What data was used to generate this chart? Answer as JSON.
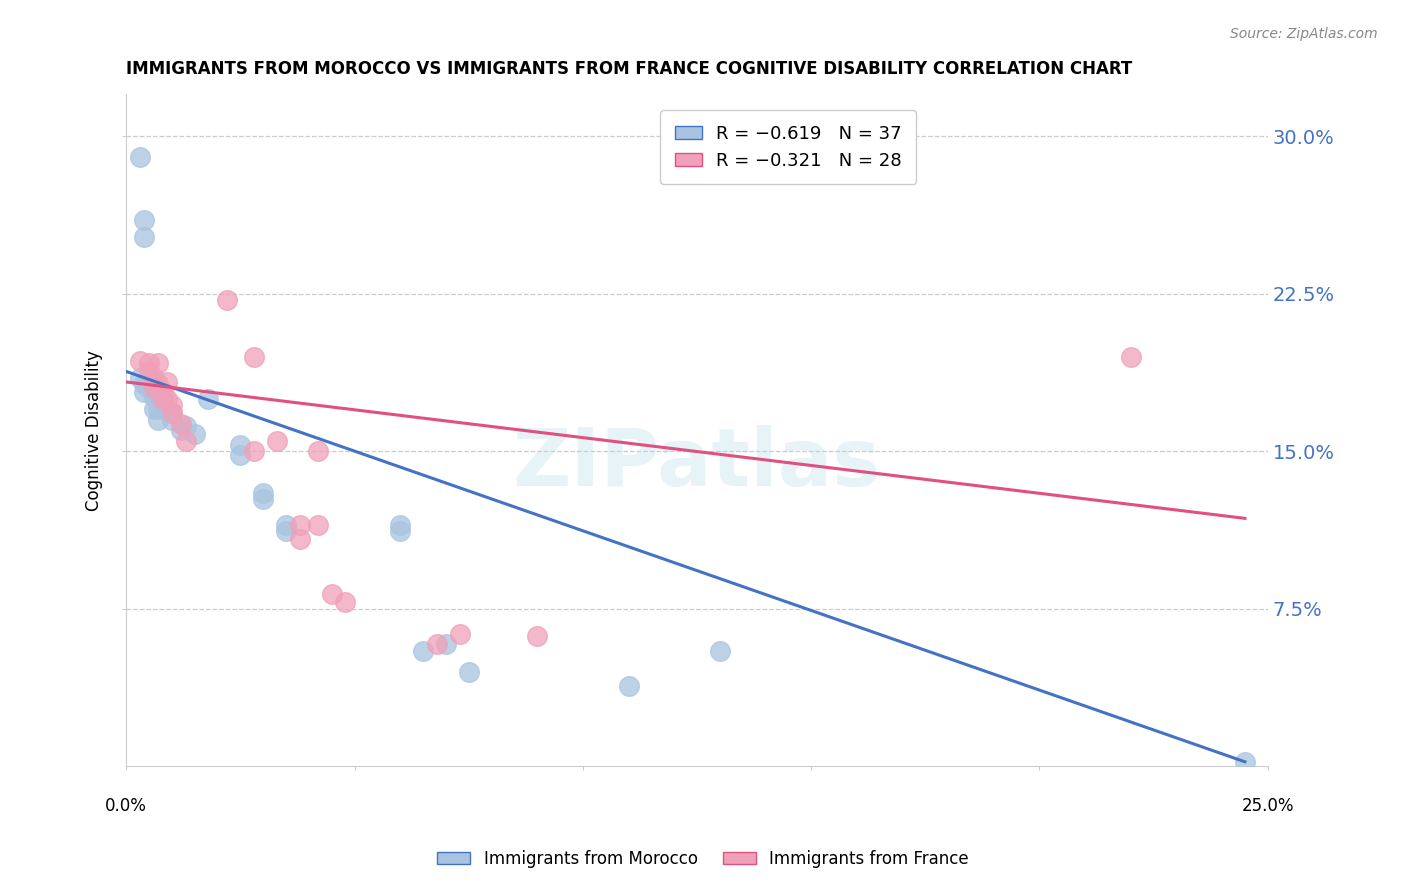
{
  "title": "IMMIGRANTS FROM MOROCCO VS IMMIGRANTS FROM FRANCE COGNITIVE DISABILITY CORRELATION CHART",
  "source": "Source: ZipAtlas.com",
  "ylabel": "Cognitive Disability",
  "yticks": [
    0.075,
    0.15,
    0.225,
    0.3
  ],
  "ytick_labels": [
    "7.5%",
    "15.0%",
    "22.5%",
    "30.0%"
  ],
  "xlim": [
    0.0,
    0.25
  ],
  "ylim": [
    0.0,
    0.32
  ],
  "watermark": "ZIPatlas",
  "morocco_color": "#a8c4e0",
  "france_color": "#f0a0b8",
  "line_morocco_color": "#4472c4",
  "line_france_color": "#e05080",
  "morocco_scatter": [
    [
      0.003,
      0.185
    ],
    [
      0.004,
      0.178
    ],
    [
      0.004,
      0.182
    ],
    [
      0.005,
      0.185
    ],
    [
      0.005,
      0.18
    ],
    [
      0.006,
      0.183
    ],
    [
      0.006,
      0.176
    ],
    [
      0.006,
      0.17
    ],
    [
      0.007,
      0.177
    ],
    [
      0.007,
      0.17
    ],
    [
      0.007,
      0.165
    ],
    [
      0.008,
      0.178
    ],
    [
      0.008,
      0.173
    ],
    [
      0.009,
      0.17
    ],
    [
      0.01,
      0.168
    ],
    [
      0.01,
      0.165
    ],
    [
      0.012,
      0.16
    ],
    [
      0.013,
      0.162
    ],
    [
      0.015,
      0.158
    ],
    [
      0.018,
      0.175
    ],
    [
      0.003,
      0.29
    ],
    [
      0.004,
      0.26
    ],
    [
      0.004,
      0.252
    ],
    [
      0.025,
      0.153
    ],
    [
      0.025,
      0.148
    ],
    [
      0.03,
      0.13
    ],
    [
      0.03,
      0.127
    ],
    [
      0.035,
      0.115
    ],
    [
      0.035,
      0.112
    ],
    [
      0.06,
      0.115
    ],
    [
      0.06,
      0.112
    ],
    [
      0.065,
      0.055
    ],
    [
      0.07,
      0.058
    ],
    [
      0.075,
      0.045
    ],
    [
      0.11,
      0.038
    ],
    [
      0.13,
      0.055
    ],
    [
      0.245,
      0.002
    ]
  ],
  "france_scatter": [
    [
      0.003,
      0.193
    ],
    [
      0.005,
      0.192
    ],
    [
      0.005,
      0.188
    ],
    [
      0.006,
      0.185
    ],
    [
      0.006,
      0.18
    ],
    [
      0.007,
      0.192
    ],
    [
      0.007,
      0.182
    ],
    [
      0.008,
      0.175
    ],
    [
      0.009,
      0.183
    ],
    [
      0.009,
      0.175
    ],
    [
      0.01,
      0.172
    ],
    [
      0.01,
      0.168
    ],
    [
      0.012,
      0.163
    ],
    [
      0.013,
      0.155
    ],
    [
      0.022,
      0.222
    ],
    [
      0.028,
      0.195
    ],
    [
      0.028,
      0.15
    ],
    [
      0.033,
      0.155
    ],
    [
      0.038,
      0.115
    ],
    [
      0.038,
      0.108
    ],
    [
      0.042,
      0.15
    ],
    [
      0.042,
      0.115
    ],
    [
      0.045,
      0.082
    ],
    [
      0.048,
      0.078
    ],
    [
      0.068,
      0.058
    ],
    [
      0.073,
      0.063
    ],
    [
      0.09,
      0.062
    ],
    [
      0.22,
      0.195
    ]
  ],
  "morocco_line": [
    [
      0.0,
      0.188
    ],
    [
      0.245,
      0.002
    ]
  ],
  "france_line": [
    [
      0.0,
      0.183
    ],
    [
      0.245,
      0.118
    ]
  ]
}
